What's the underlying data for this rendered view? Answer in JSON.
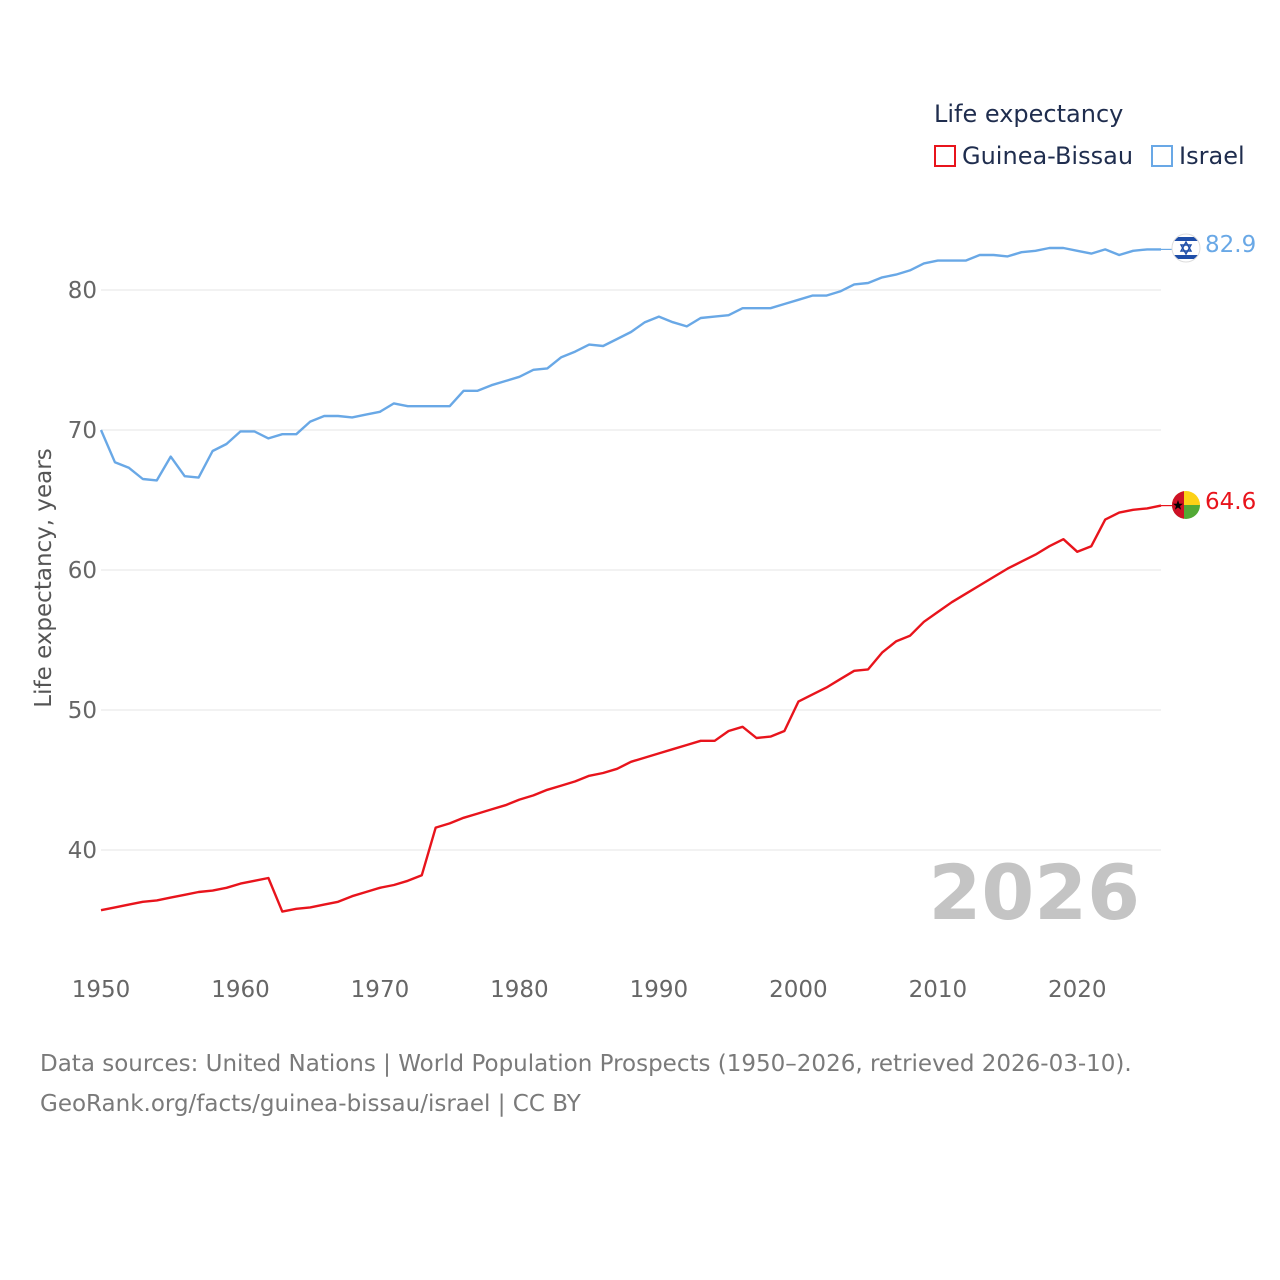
{
  "legend": {
    "title": "Life expectancy",
    "items": [
      {
        "label": "Guinea-Bissau",
        "color": "#e8141c"
      },
      {
        "label": "Israel",
        "color": "#69a8e6"
      }
    ]
  },
  "year_label": "2026",
  "footer": {
    "line1": "Data sources: United Nations | World Population Prospects (1950–2026, retrieved 2026-03-10).",
    "line2": "GeoRank.org/facts/guinea-bissau/israel | CC BY"
  },
  "end_labels": {
    "israel": "82.9",
    "guinea_bissau": "64.6"
  },
  "chart_data": {
    "type": "line",
    "title": "",
    "xlabel": "",
    "ylabel": "Life expectancy, years",
    "xlim": [
      1950,
      2026
    ],
    "ylim": [
      35,
      85
    ],
    "x_ticks": [
      1950,
      1960,
      1970,
      1980,
      1990,
      2000,
      2010,
      2020
    ],
    "y_ticks": [
      40,
      50,
      60,
      70,
      80
    ],
    "x": [
      1950,
      1951,
      1952,
      1953,
      1954,
      1955,
      1956,
      1957,
      1958,
      1959,
      1960,
      1961,
      1962,
      1963,
      1964,
      1965,
      1966,
      1967,
      1968,
      1969,
      1970,
      1971,
      1972,
      1973,
      1974,
      1975,
      1976,
      1977,
      1978,
      1979,
      1980,
      1981,
      1982,
      1983,
      1984,
      1985,
      1986,
      1987,
      1988,
      1989,
      1990,
      1991,
      1992,
      1993,
      1994,
      1995,
      1996,
      1997,
      1998,
      1999,
      2000,
      2001,
      2002,
      2003,
      2004,
      2005,
      2006,
      2007,
      2008,
      2009,
      2010,
      2011,
      2012,
      2013,
      2014,
      2015,
      2016,
      2017,
      2018,
      2019,
      2020,
      2021,
      2022,
      2023,
      2024,
      2025,
      2026
    ],
    "series": [
      {
        "name": "Israel",
        "color": "#69a8e6",
        "values": [
          70.0,
          67.7,
          67.3,
          66.5,
          66.4,
          68.1,
          66.7,
          66.6,
          68.5,
          69.0,
          69.9,
          69.9,
          69.4,
          69.7,
          69.7,
          70.6,
          71.0,
          71.0,
          70.9,
          71.1,
          71.3,
          71.9,
          71.7,
          71.7,
          71.7,
          71.7,
          72.8,
          72.8,
          73.2,
          73.5,
          73.8,
          74.3,
          74.4,
          75.2,
          75.6,
          76.1,
          76.0,
          76.5,
          77.0,
          77.7,
          78.1,
          77.7,
          77.4,
          78.0,
          78.1,
          78.2,
          78.7,
          78.7,
          78.7,
          79.0,
          79.3,
          79.6,
          79.6,
          79.9,
          80.4,
          80.5,
          80.9,
          81.1,
          81.4,
          81.9,
          82.1,
          82.1,
          82.1,
          82.5,
          82.5,
          82.4,
          82.7,
          82.8,
          83.0,
          83.0,
          82.8,
          82.6,
          82.9,
          82.5,
          82.8,
          82.9,
          82.9
        ]
      },
      {
        "name": "Guinea-Bissau",
        "color": "#e8141c",
        "values": [
          35.7,
          35.9,
          36.1,
          36.3,
          36.4,
          36.6,
          36.8,
          37.0,
          37.1,
          37.3,
          37.6,
          37.8,
          38.0,
          35.6,
          35.8,
          35.9,
          36.1,
          36.3,
          36.7,
          37.0,
          37.3,
          37.5,
          37.8,
          38.2,
          41.6,
          41.9,
          42.3,
          42.6,
          42.9,
          43.2,
          43.6,
          43.9,
          44.3,
          44.6,
          44.9,
          45.3,
          45.5,
          45.8,
          46.3,
          46.6,
          46.9,
          47.2,
          47.5,
          47.8,
          47.8,
          48.5,
          48.8,
          48.0,
          48.1,
          48.5,
          50.6,
          51.1,
          51.6,
          52.2,
          52.8,
          52.9,
          54.1,
          54.9,
          55.3,
          56.3,
          57.0,
          57.7,
          58.3,
          58.9,
          59.5,
          60.1,
          60.6,
          61.1,
          61.7,
          62.2,
          61.3,
          61.7,
          63.6,
          64.1,
          64.3,
          64.4,
          64.6
        ]
      }
    ]
  }
}
